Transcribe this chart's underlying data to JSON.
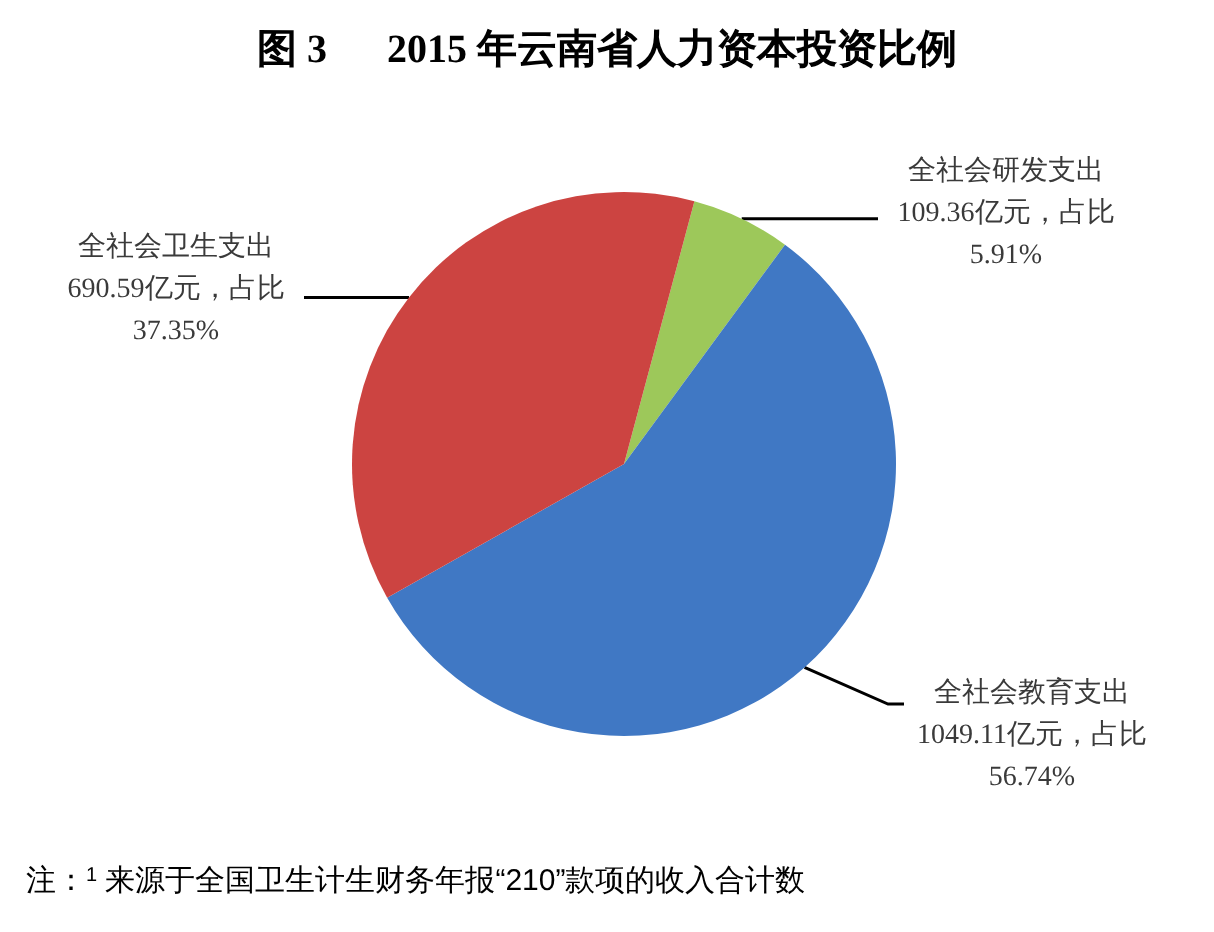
{
  "chart_data": {
    "type": "pie",
    "title": "图 3      2015 年云南省人力资本投资比例",
    "categories": [
      "全社会研发支出",
      "全社会教育支出",
      "全社会卫生支出"
    ],
    "values": [
      109.36,
      1049.11,
      690.59
    ],
    "colors": [
      "#9dc85a",
      "#4078c4",
      "#cc4441"
    ],
    "value_labels": [
      "109.36亿元，占比5.91%",
      "1049.11亿元，占比56.74%",
      "690.59亿元，占比37.35%"
    ],
    "annotations": [
      "注：$^{1}$ 来源于全国卫生计生财务年报“210”款项的收入合计数"
    ]
  }
}
